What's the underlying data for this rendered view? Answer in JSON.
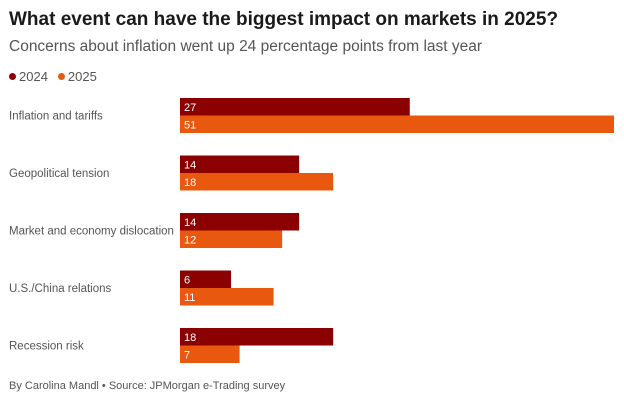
{
  "header": {
    "title": "What event can have the biggest impact on markets in 2025?",
    "subtitle": "Concerns about inflation went up 24 percentage points from last year"
  },
  "colors": {
    "series_2024": "#8b0000",
    "series_2025": "#e8580e"
  },
  "footer": {
    "source": "By Carolina Mandl • Source: JPMorgan e-Trading survey"
  },
  "chart_data": {
    "type": "bar",
    "orientation": "horizontal",
    "title": "What event can have the biggest impact on markets in 2025?",
    "subtitle": "Concerns about inflation went up 24 percentage points from last year",
    "categories": [
      "Inflation and tariffs",
      "Geopolitical tension",
      "Market and economy dislocation",
      "U.S./China relations",
      "Recession risk"
    ],
    "series": [
      {
        "name": "2024",
        "color": "#8b0000",
        "values": [
          27,
          14,
          14,
          6,
          18
        ]
      },
      {
        "name": "2025",
        "color": "#e8580e",
        "values": [
          51,
          18,
          12,
          11,
          7
        ]
      }
    ],
    "xlim": [
      0,
      51
    ],
    "grid": false,
    "legend": "top-left",
    "data_labels": "inside-left"
  }
}
